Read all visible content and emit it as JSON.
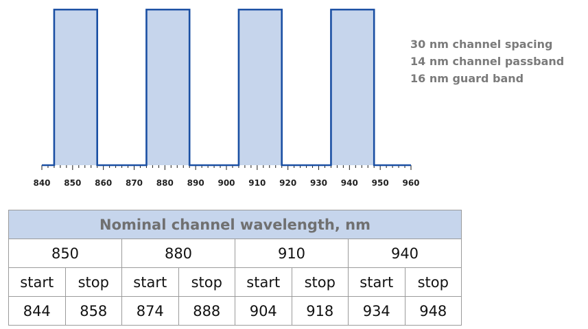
{
  "chart_data": {
    "type": "step",
    "x_axis": {
      "min": 840,
      "max": 960,
      "major_step": 10,
      "minor_step": 2,
      "tick_labels": [
        "840",
        "850",
        "860",
        "870",
        "880",
        "890",
        "900",
        "910",
        "920",
        "930",
        "940",
        "950",
        "960"
      ]
    },
    "bands": [
      {
        "start": 844,
        "stop": 858
      },
      {
        "start": 874,
        "stop": 888
      },
      {
        "start": 904,
        "stop": 918
      },
      {
        "start": 934,
        "stop": 948
      }
    ],
    "band_fill": "#c6d5ec",
    "line_color": "#1a4fa3"
  },
  "notes": [
    "30 nm channel spacing",
    "14 nm channel passband",
    "16 nm guard band"
  ],
  "table": {
    "title": "Nominal channel wavelength, nm",
    "channels": [
      {
        "nominal": "850",
        "start": "844",
        "stop": "858"
      },
      {
        "nominal": "880",
        "start": "874",
        "stop": "888"
      },
      {
        "nominal": "910",
        "start": "904",
        "stop": "918"
      },
      {
        "nominal": "940",
        "start": "934",
        "stop": "948"
      }
    ],
    "start_label": "start",
    "stop_label": "stop"
  }
}
